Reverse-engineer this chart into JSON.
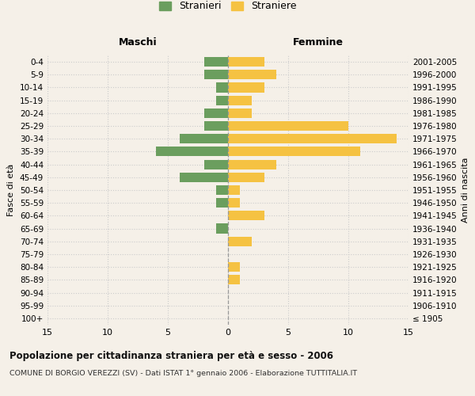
{
  "age_groups": [
    "100+",
    "95-99",
    "90-94",
    "85-89",
    "80-84",
    "75-79",
    "70-74",
    "65-69",
    "60-64",
    "55-59",
    "50-54",
    "45-49",
    "40-44",
    "35-39",
    "30-34",
    "25-29",
    "20-24",
    "15-19",
    "10-14",
    "5-9",
    "0-4"
  ],
  "birth_years": [
    "≤ 1905",
    "1906-1910",
    "1911-1915",
    "1916-1920",
    "1921-1925",
    "1926-1930",
    "1931-1935",
    "1936-1940",
    "1941-1945",
    "1946-1950",
    "1951-1955",
    "1956-1960",
    "1961-1965",
    "1966-1970",
    "1971-1975",
    "1976-1980",
    "1981-1985",
    "1986-1990",
    "1991-1995",
    "1996-2000",
    "2001-2005"
  ],
  "maschi": [
    0,
    0,
    0,
    0,
    0,
    0,
    0,
    1,
    0,
    1,
    1,
    4,
    2,
    6,
    4,
    2,
    2,
    1,
    1,
    2,
    2
  ],
  "femmine": [
    0,
    0,
    0,
    1,
    1,
    0,
    2,
    0,
    3,
    1,
    1,
    3,
    4,
    11,
    14,
    10,
    2,
    2,
    3,
    4,
    3
  ],
  "color_maschi": "#6b9e5e",
  "color_femmine": "#f5c242",
  "background_color": "#f5f0e8",
  "grid_color": "#cccccc",
  "xlim": 15,
  "title": "Popolazione per cittadinanza straniera per età e sesso - 2006",
  "subtitle": "COMUNE DI BORGIO VEREZZI (SV) - Dati ISTAT 1° gennaio 2006 - Elaborazione TUTTITALIA.IT",
  "ylabel_left": "Fasce di età",
  "ylabel_right": "Anni di nascita",
  "label_maschi": "Maschi",
  "label_femmine": "Femmine",
  "legend_stranieri": "Stranieri",
  "legend_straniere": "Straniere",
  "xticks": [
    -15,
    -10,
    -5,
    0,
    5,
    10,
    15
  ]
}
